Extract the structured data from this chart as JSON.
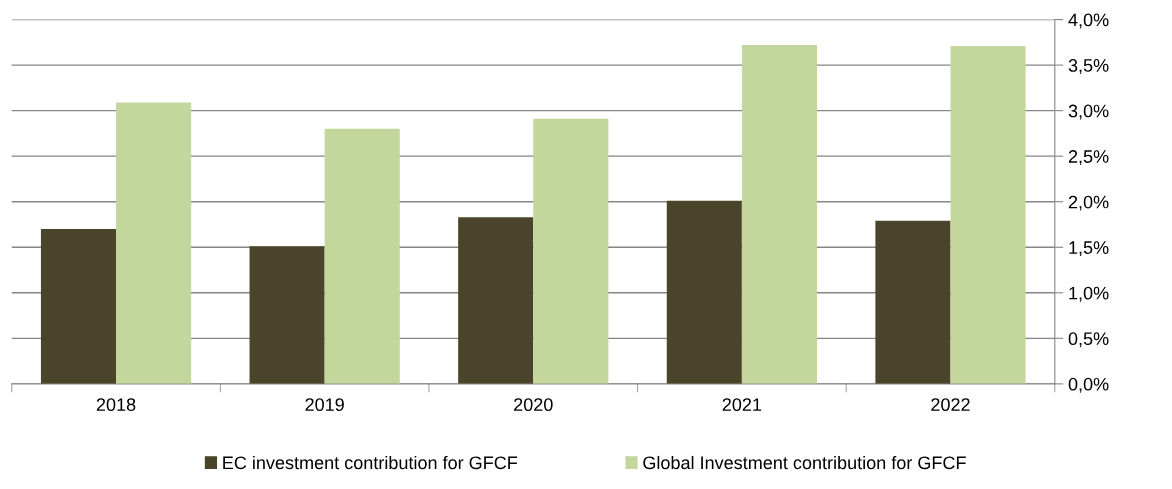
{
  "chart_data": {
    "type": "bar",
    "categories": [
      "2018",
      "2019",
      "2020",
      "2021",
      "2022"
    ],
    "series": [
      {
        "name": "EC investment contribution for GFCF",
        "color": "#4a452a",
        "values": [
          1.7,
          1.51,
          1.83,
          2.01,
          1.79
        ]
      },
      {
        "name": "Global Investment contribution for GFCF",
        "color": "#c3d69b",
        "values": [
          3.09,
          2.8,
          2.91,
          3.72,
          3.71
        ]
      }
    ],
    "ylim": [
      0,
      4
    ],
    "yticks": [
      {
        "value": 0,
        "label": "0,0%"
      },
      {
        "value": 0.5,
        "label": "0,5%"
      },
      {
        "value": 1,
        "label": "1,0%"
      },
      {
        "value": 1.5,
        "label": "1,5%"
      },
      {
        "value": 2,
        "label": "2,0%"
      },
      {
        "value": 2.5,
        "label": "2,5%"
      },
      {
        "value": 3,
        "label": "3,0%"
      },
      {
        "value": 3.5,
        "label": "3,5%"
      },
      {
        "value": 4,
        "label": "4,0%"
      }
    ],
    "grid": "y",
    "legend": "bottom"
  }
}
